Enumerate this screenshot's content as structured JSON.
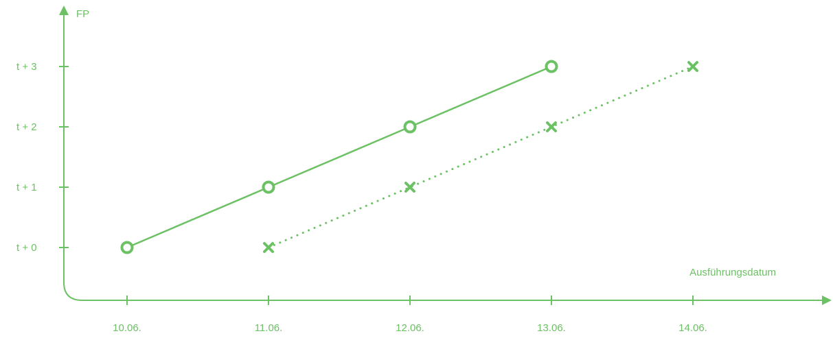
{
  "colors": {
    "accent": "#6cc164"
  },
  "chart_data": {
    "type": "line",
    "xlabel": "Ausführungsdatum",
    "ylabel": "FP",
    "categories": [
      "10.06.",
      "11.06.",
      "12.06.",
      "13.06.",
      "14.06."
    ],
    "y_categories": [
      "t + 0",
      "t + 1",
      "t + 2",
      "t + 3"
    ],
    "series": [
      {
        "marker": "circle",
        "line_style": "solid",
        "points": [
          {
            "x": "10.06.",
            "y": "t + 0"
          },
          {
            "x": "11.06.",
            "y": "t + 1"
          },
          {
            "x": "12.06.",
            "y": "t + 2"
          },
          {
            "x": "13.06.",
            "y": "t + 3"
          }
        ]
      },
      {
        "marker": "x",
        "line_style": "dotted",
        "points": [
          {
            "x": "11.06.",
            "y": "t + 0"
          },
          {
            "x": "12.06.",
            "y": "t + 1"
          },
          {
            "x": "13.06.",
            "y": "t + 2"
          },
          {
            "x": "14.06.",
            "y": "t + 3"
          }
        ]
      }
    ],
    "grid": false,
    "legend": "none"
  }
}
